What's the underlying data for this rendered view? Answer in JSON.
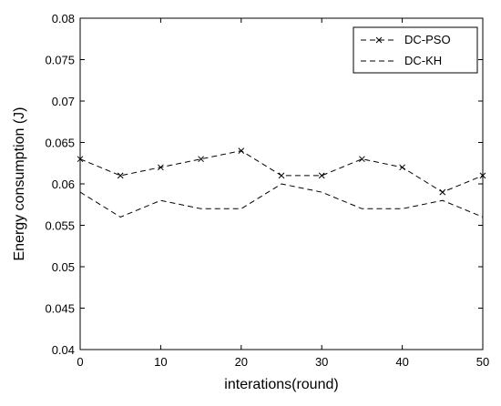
{
  "chart_data": {
    "type": "line",
    "title": "",
    "xlabel": "interations(round)",
    "ylabel": "Energy consumption (J)",
    "xlim": [
      0,
      50
    ],
    "ylim": [
      0.04,
      0.08
    ],
    "x_ticks": [
      0,
      10,
      20,
      30,
      40,
      50
    ],
    "x_tick_labels": [
      "0",
      "10",
      "20",
      "30",
      "40",
      "50"
    ],
    "y_ticks": [
      0.04,
      0.045,
      0.05,
      0.055,
      0.06,
      0.065,
      0.07,
      0.075,
      0.08
    ],
    "y_tick_labels": [
      "0.04",
      "0.045",
      "0.05",
      "0.055",
      "0.06",
      "0.065",
      "0.07",
      "0.075",
      "0.08"
    ],
    "grid": false,
    "legend_position": "top-right",
    "x": [
      0,
      5,
      10,
      15,
      20,
      25,
      30,
      35,
      40,
      45,
      50
    ],
    "series": [
      {
        "name": "DC-PSO",
        "values": [
          0.063,
          0.061,
          0.062,
          0.063,
          0.064,
          0.061,
          0.061,
          0.063,
          0.062,
          0.059,
          0.061
        ],
        "line_style": "dashed",
        "marker": "x",
        "color": "#000000"
      },
      {
        "name": "DC-KH",
        "values": [
          0.059,
          0.056,
          0.058,
          0.057,
          0.057,
          0.06,
          0.059,
          0.057,
          0.057,
          0.058,
          0.056
        ],
        "line_style": "dashed",
        "marker": "none",
        "color": "#000000"
      }
    ]
  }
}
